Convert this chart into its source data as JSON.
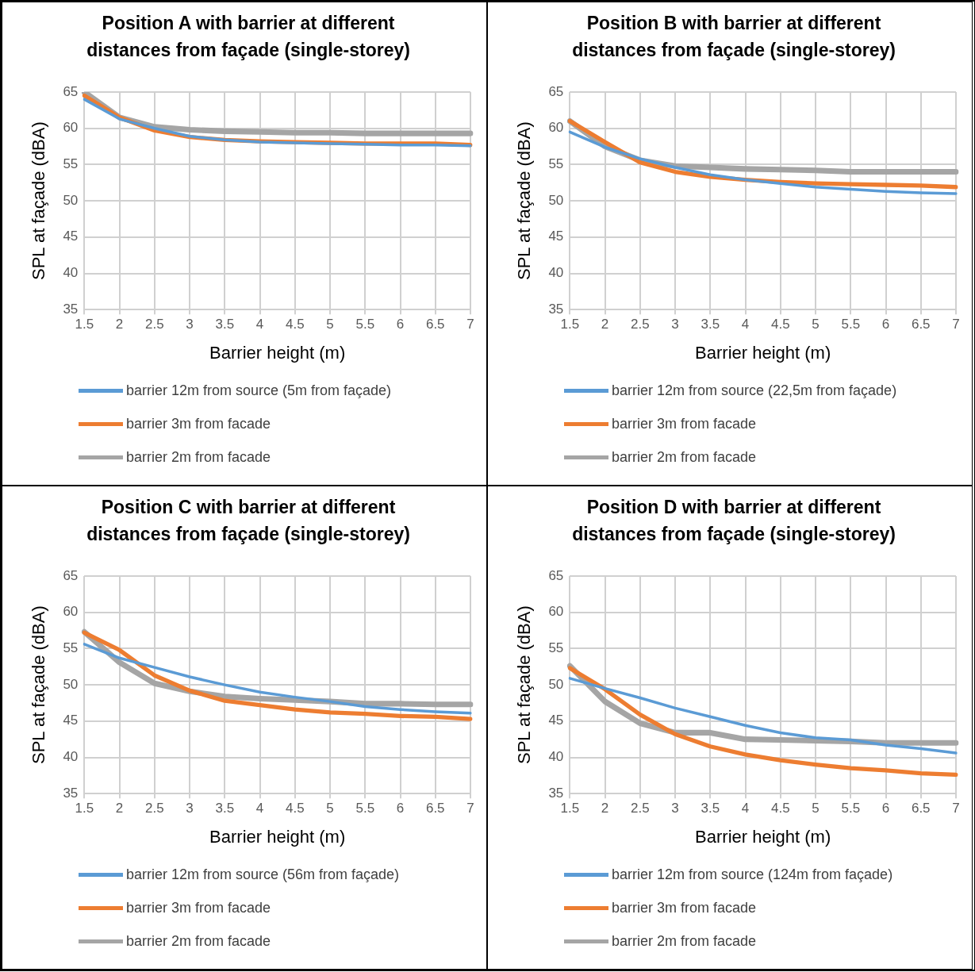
{
  "chart_data": [
    {
      "type": "line",
      "title": [
        "Position A with barrier at different",
        "distances from façade (single-storey)"
      ],
      "xlabel": "Barrier height (m)",
      "ylabel": "SPL at façade (dBA)",
      "categories": [
        "1.5",
        "2",
        "2.5",
        "3",
        "3.5",
        "4",
        "4.5",
        "5",
        "5.5",
        "6",
        "6.5",
        "7"
      ],
      "ylim": [
        35,
        65
      ],
      "yticks": [
        35,
        40,
        45,
        50,
        55,
        60,
        65
      ],
      "grid": true,
      "legend": "bottom",
      "marker": "none",
      "line_style": "solid",
      "series": [
        {
          "name": "barrier 12m from source (5m from façade)",
          "color": "#5b9bd5",
          "values": [
            64.0,
            61.3,
            60.0,
            58.9,
            58.4,
            58.1,
            58.0,
            57.9,
            57.8,
            57.7,
            57.7,
            57.6
          ]
        },
        {
          "name": "barrier 3m from facade",
          "color": "#ed7d31",
          "values": [
            64.5,
            61.5,
            59.7,
            58.8,
            58.4,
            58.2,
            58.1,
            58.0,
            57.9,
            57.9,
            57.9,
            57.7
          ]
        },
        {
          "name": "barrier 2m from facade",
          "color": "#a5a5a5",
          "values": [
            65.0,
            61.5,
            60.2,
            59.8,
            59.6,
            59.5,
            59.4,
            59.4,
            59.3,
            59.3,
            59.3,
            59.3
          ]
        }
      ]
    },
    {
      "type": "line",
      "title": [
        "Position B with barrier at different",
        "distances from façade (single-storey)"
      ],
      "xlabel": "Barrier height (m)",
      "ylabel": "SPL at façade (dBA)",
      "categories": [
        "1.5",
        "2",
        "2.5",
        "3",
        "3.5",
        "4",
        "4.5",
        "5",
        "5.5",
        "6",
        "6.5",
        "7"
      ],
      "ylim": [
        35,
        65
      ],
      "yticks": [
        35,
        40,
        45,
        50,
        55,
        60,
        65
      ],
      "grid": true,
      "legend": "bottom",
      "marker": "none",
      "line_style": "solid",
      "series": [
        {
          "name": "barrier 12m from source (22,5m from façade)",
          "color": "#5b9bd5",
          "values": [
            59.5,
            57.4,
            55.8,
            54.6,
            53.6,
            52.9,
            52.4,
            51.9,
            51.6,
            51.3,
            51.1,
            51.0
          ]
        },
        {
          "name": "barrier 3m from facade",
          "color": "#ed7d31",
          "values": [
            61.0,
            58.1,
            55.3,
            54.0,
            53.3,
            52.9,
            52.6,
            52.4,
            52.3,
            52.2,
            52.1,
            51.9
          ]
        },
        {
          "name": "barrier 2m from facade",
          "color": "#a5a5a5",
          "values": [
            61.0,
            57.5,
            55.6,
            54.8,
            54.6,
            54.4,
            54.3,
            54.2,
            54.0,
            54.0,
            54.0,
            54.0
          ]
        }
      ]
    },
    {
      "type": "line",
      "title": [
        "Position C with barrier at different",
        "distances from façade (single-storey)"
      ],
      "xlabel": "Barrier height (m)",
      "ylabel": "SPL at façade (dBA)",
      "categories": [
        "1.5",
        "2",
        "2.5",
        "3",
        "3.5",
        "4",
        "4.5",
        "5",
        "5.5",
        "6",
        "6.5",
        "7"
      ],
      "ylim": [
        35,
        65
      ],
      "yticks": [
        35,
        40,
        45,
        50,
        55,
        60,
        65
      ],
      "grid": true,
      "legend": "bottom",
      "marker": "none",
      "line_style": "solid",
      "series": [
        {
          "name": "barrier 12m from source (56m from façade)",
          "color": "#5b9bd5",
          "values": [
            55.6,
            53.7,
            52.4,
            51.1,
            50.0,
            49.0,
            48.3,
            47.7,
            47.0,
            46.6,
            46.3,
            46.1
          ]
        },
        {
          "name": "barrier 3m from facade",
          "color": "#ed7d31",
          "values": [
            57.2,
            54.8,
            51.3,
            49.2,
            47.8,
            47.2,
            46.6,
            46.2,
            46.0,
            45.7,
            45.6,
            45.3
          ]
        },
        {
          "name": "barrier 2m from facade",
          "color": "#a5a5a5",
          "values": [
            57.3,
            53.1,
            50.2,
            49.1,
            48.4,
            48.1,
            47.9,
            47.7,
            47.4,
            47.4,
            47.3,
            47.3
          ]
        }
      ]
    },
    {
      "type": "line",
      "title": [
        "Position D with barrier at different",
        "distances from façade (single-storey)"
      ],
      "xlabel": "Barrier height (m)",
      "ylabel": "SPL at façade (dBA)",
      "categories": [
        "1.5",
        "2",
        "2.5",
        "3",
        "3.5",
        "4",
        "4.5",
        "5",
        "5.5",
        "6",
        "6.5",
        "7"
      ],
      "ylim": [
        35,
        65
      ],
      "yticks": [
        35,
        40,
        45,
        50,
        55,
        60,
        65
      ],
      "grid": true,
      "legend": "bottom",
      "marker": "none",
      "line_style": "solid",
      "series": [
        {
          "name": "barrier 12m from source (124m from façade)",
          "color": "#5b9bd5",
          "values": [
            50.9,
            49.5,
            48.2,
            46.8,
            45.6,
            44.4,
            43.4,
            42.7,
            42.4,
            41.7,
            41.2,
            40.6
          ]
        },
        {
          "name": "barrier 3m from facade",
          "color": "#ed7d31",
          "values": [
            52.3,
            49.4,
            45.9,
            43.2,
            41.5,
            40.4,
            39.6,
            39.0,
            38.5,
            38.2,
            37.8,
            37.6
          ]
        },
        {
          "name": "barrier 2m from facade",
          "color": "#a5a5a5",
          "values": [
            52.6,
            47.7,
            44.7,
            43.4,
            43.4,
            42.5,
            42.4,
            42.3,
            42.2,
            42.0,
            42.0,
            42.0
          ]
        }
      ]
    }
  ]
}
